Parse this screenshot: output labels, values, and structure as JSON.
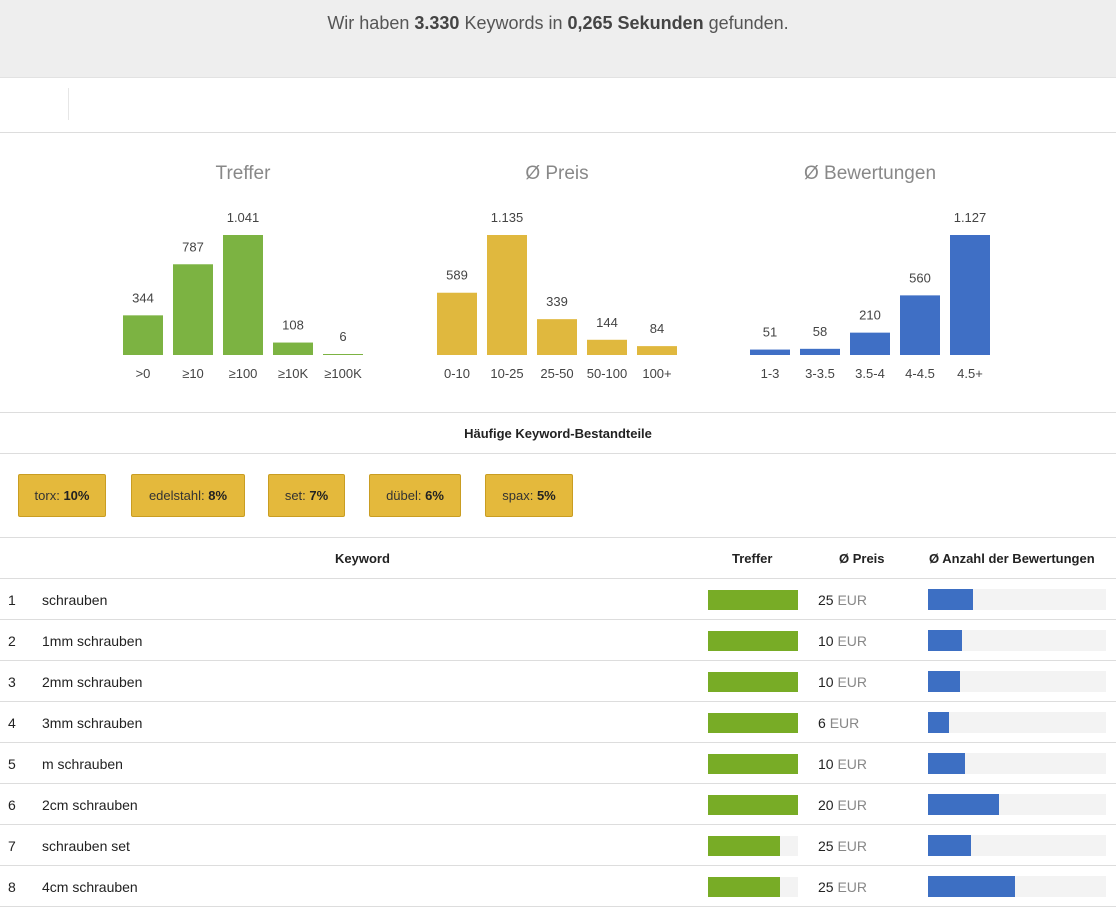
{
  "banner": {
    "prefix": "Wir haben",
    "count": "3.330",
    "middle": "Keywords in",
    "time": "0,265 Sekunden",
    "suffix": "gefunden."
  },
  "colors": {
    "green": "#7cb342",
    "gold": "#e0b83e",
    "blue": "#3f6fc5"
  },
  "chart_data": [
    {
      "type": "bar",
      "title": "Treffer",
      "categories": [
        ">0",
        "≥10",
        "≥100",
        "≥10K",
        "≥100K"
      ],
      "values": [
        344,
        787,
        1041,
        108,
        6
      ],
      "value_labels": [
        "344",
        "787",
        "1.041",
        "108",
        "6"
      ],
      "color": "#7cb342"
    },
    {
      "type": "bar",
      "title": "Ø Preis",
      "categories": [
        "0-10",
        "10-25",
        "25-50",
        "50-100",
        "100+"
      ],
      "values": [
        589,
        1135,
        339,
        144,
        84
      ],
      "value_labels": [
        "589",
        "1.135",
        "339",
        "144",
        "84"
      ],
      "color": "#e0b83e"
    },
    {
      "type": "bar",
      "title": "Ø Bewertungen",
      "categories": [
        "1-3",
        "3-3.5",
        "3.5-4",
        "4-4.5",
        "4.5+"
      ],
      "values": [
        51,
        58,
        210,
        560,
        1127
      ],
      "value_labels": [
        "51",
        "58",
        "210",
        "560",
        "1.127"
      ],
      "color": "#3f6fc5"
    }
  ],
  "keyword_parts": {
    "heading": "Häufige Keyword-Bestandteile",
    "items": [
      {
        "word": "torx",
        "pct": "10%"
      },
      {
        "word": "edelstahl",
        "pct": "8%"
      },
      {
        "word": "set",
        "pct": "7%"
      },
      {
        "word": "dübel",
        "pct": "6%"
      },
      {
        "word": "spax",
        "pct": "5%"
      }
    ]
  },
  "table": {
    "headers": {
      "keyword": "Keyword",
      "treffer": "Treffer",
      "preis": "Ø Preis",
      "bewertungen": "Ø Anzahl der Bewertungen"
    },
    "currency": "EUR",
    "rows": [
      {
        "num": "1",
        "keyword": "schrauben",
        "treffer_level": 1.0,
        "price": "25",
        "reviews_level": 0.25
      },
      {
        "num": "2",
        "keyword": "1mm schrauben",
        "treffer_level": 1.0,
        "price": "10",
        "reviews_level": 0.19
      },
      {
        "num": "3",
        "keyword": "2mm schrauben",
        "treffer_level": 1.0,
        "price": "10",
        "reviews_level": 0.18
      },
      {
        "num": "4",
        "keyword": "3mm schrauben",
        "treffer_level": 1.0,
        "price": "6",
        "reviews_level": 0.12
      },
      {
        "num": "5",
        "keyword": "m schrauben",
        "treffer_level": 1.0,
        "price": "10",
        "reviews_level": 0.21
      },
      {
        "num": "6",
        "keyword": "2cm schrauben",
        "treffer_level": 1.0,
        "price": "20",
        "reviews_level": 0.4
      },
      {
        "num": "7",
        "keyword": "schrauben set",
        "treffer_level": 0.8,
        "price": "25",
        "reviews_level": 0.24
      },
      {
        "num": "8",
        "keyword": "4cm schrauben",
        "treffer_level": 0.8,
        "price": "25",
        "reviews_level": 0.49
      }
    ]
  }
}
